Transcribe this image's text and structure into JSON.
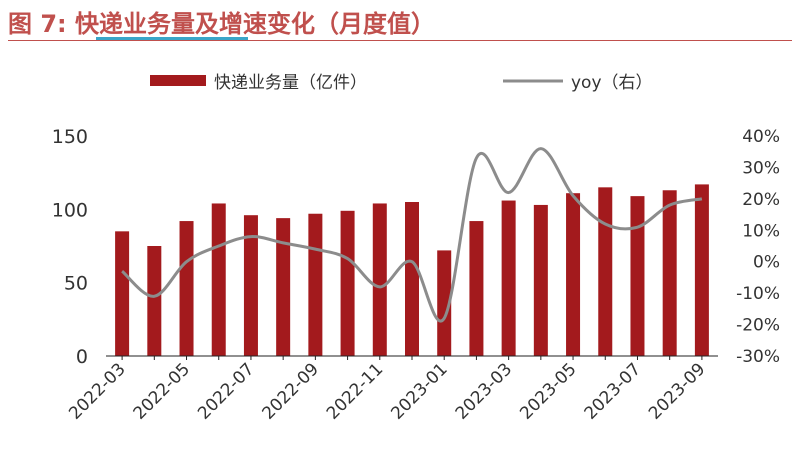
{
  "figure": {
    "title": "图 7:  快递业务量及增速变化（月度值）"
  },
  "colors": {
    "bar": "#a31a1d",
    "line": "#8c8c8c",
    "title": "#c0504d",
    "accent": "#3aa6c9",
    "axis": "#222222",
    "text": "#333333"
  },
  "chart_data": {
    "type": "bar",
    "categories": [
      "2022-03",
      "2022-04",
      "2022-05",
      "2022-06",
      "2022-07",
      "2022-08",
      "2022-09",
      "2022-10",
      "2022-11",
      "2022-12",
      "2023-01",
      "2023-02",
      "2023-03",
      "2023-04",
      "2023-05",
      "2023-06",
      "2023-07",
      "2023-08",
      "2023-09"
    ],
    "x_tick_labels": [
      "2022-03",
      "2022-05",
      "2022-07",
      "2022-09",
      "2022-11",
      "2023-01",
      "2023-03",
      "2023-05",
      "2023-07",
      "2023-09"
    ],
    "series": [
      {
        "name": "快递业务量（亿件）",
        "type": "bar",
        "axis": "left",
        "values": [
          85,
          75,
          92,
          104,
          96,
          94,
          97,
          99,
          104,
          105,
          72,
          92,
          106,
          103,
          111,
          115,
          109,
          113,
          117
        ]
      },
      {
        "name": "yoy（右）",
        "type": "line",
        "axis": "right",
        "values": [
          -3,
          -11,
          0,
          5,
          8,
          6,
          4,
          1,
          -8,
          0,
          -18,
          33,
          22,
          36,
          21,
          12,
          11,
          18,
          20
        ]
      }
    ],
    "y_left": {
      "ylim": [
        0,
        150
      ],
      "ticks": [
        "0",
        "50",
        "100",
        "150"
      ]
    },
    "y_right": {
      "ylim": [
        -30,
        40
      ],
      "ticks": [
        "-30%",
        "-20%",
        "-10%",
        "0%",
        "10%",
        "20%",
        "30%",
        "40%"
      ]
    },
    "legend": "top-center",
    "grid": false
  }
}
